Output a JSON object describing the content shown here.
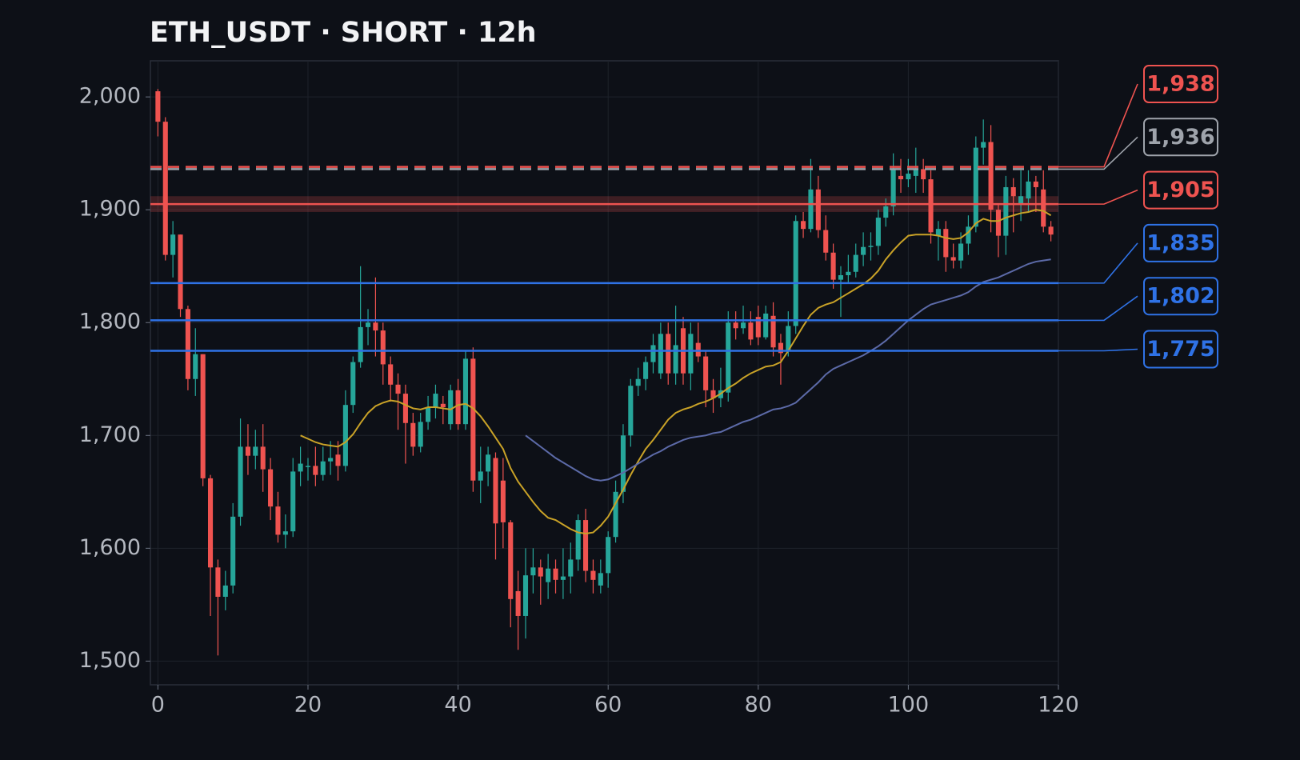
{
  "chart_data": {
    "type": "candlestick",
    "title": "ETH_USDT · SHORT · 12h",
    "xlim": [
      -1,
      120
    ],
    "ylim": [
      1479,
      2032
    ],
    "xticks": [
      0,
      20,
      40,
      60,
      80,
      100,
      120
    ],
    "yticks": [
      {
        "value": 1500,
        "label": "1,500"
      },
      {
        "value": 1600,
        "label": "1,600"
      },
      {
        "value": 1700,
        "label": "1,700"
      },
      {
        "value": 1800,
        "label": "1,800"
      },
      {
        "value": 1900,
        "label": "1,900"
      },
      {
        "value": 2000,
        "label": "2,000"
      }
    ],
    "grid": true,
    "up_color": "#26a69a",
    "down_color": "#ef5350",
    "x": [
      0,
      1,
      2,
      3,
      4,
      5,
      6,
      7,
      8,
      9,
      10,
      11,
      12,
      13,
      14,
      15,
      16,
      17,
      18,
      19,
      20,
      21,
      22,
      23,
      24,
      25,
      26,
      27,
      28,
      29,
      30,
      31,
      32,
      33,
      34,
      35,
      36,
      37,
      38,
      39,
      40,
      41,
      42,
      43,
      44,
      45,
      46,
      47,
      48,
      49,
      50,
      51,
      52,
      53,
      54,
      55,
      56,
      57,
      58,
      59,
      60,
      61,
      62,
      63,
      64,
      65,
      66,
      67,
      68,
      69,
      70,
      71,
      72,
      73,
      74,
      75,
      76,
      77,
      78,
      79,
      80,
      81,
      82,
      83,
      84,
      85,
      86,
      87,
      88,
      89,
      90,
      91,
      92,
      93,
      94,
      95,
      96,
      97,
      98,
      99,
      100,
      101,
      102,
      103,
      104,
      105,
      106,
      107,
      108,
      109,
      110,
      111,
      112,
      113,
      114,
      115,
      116,
      117,
      118,
      119
    ],
    "open": [
      2005,
      1978,
      1860,
      1878,
      1812,
      1750,
      1772,
      1662,
      1583,
      1557,
      1567,
      1628,
      1690,
      1682,
      1690,
      1670,
      1637,
      1612,
      1615,
      1668,
      1672,
      1673,
      1665,
      1677,
      1683,
      1673,
      1727,
      1765,
      1796,
      1800,
      1793,
      1763,
      1745,
      1737,
      1711,
      1690,
      1712,
      1725,
      1728,
      1710,
      1740,
      1710,
      1768,
      1660,
      1668,
      1680,
      1660,
      1623,
      1562,
      1540,
      1576,
      1583,
      1570,
      1582,
      1572,
      1575,
      1590,
      1625,
      1580,
      1567,
      1578,
      1610,
      1650,
      1700,
      1744,
      1750,
      1765,
      1755,
      1790,
      1755,
      1795,
      1755,
      1782,
      1770,
      1740,
      1733,
      1738,
      1800,
      1795,
      1800,
      1805,
      1787,
      1806,
      1782,
      1775,
      1797,
      1890,
      1883,
      1918,
      1882,
      1862,
      1838,
      1842,
      1845,
      1860,
      1867,
      1868,
      1893,
      1903,
      1930,
      1927,
      1930,
      1936,
      1927,
      1877,
      1883,
      1858,
      1855,
      1870,
      1885,
      1955,
      1960,
      1900,
      1877,
      1920,
      1905,
      1910,
      1925,
      1918,
      1885
    ],
    "high": [
      2007,
      1982,
      1890,
      1878,
      1815,
      1795,
      1772,
      1665,
      1590,
      1580,
      1640,
      1715,
      1710,
      1705,
      1710,
      1680,
      1650,
      1630,
      1680,
      1690,
      1680,
      1690,
      1690,
      1695,
      1695,
      1740,
      1770,
      1850,
      1812,
      1840,
      1800,
      1770,
      1755,
      1745,
      1720,
      1720,
      1735,
      1745,
      1735,
      1745,
      1750,
      1775,
      1778,
      1690,
      1690,
      1685,
      1680,
      1625,
      1580,
      1600,
      1600,
      1590,
      1595,
      1590,
      1600,
      1605,
      1630,
      1635,
      1590,
      1590,
      1615,
      1660,
      1710,
      1750,
      1760,
      1770,
      1790,
      1800,
      1800,
      1815,
      1805,
      1800,
      1800,
      1775,
      1750,
      1760,
      1810,
      1810,
      1815,
      1810,
      1815,
      1815,
      1818,
      1790,
      1810,
      1895,
      1898,
      1945,
      1930,
      1895,
      1870,
      1850,
      1860,
      1870,
      1880,
      1880,
      1900,
      1910,
      1950,
      1945,
      1945,
      1955,
      1945,
      1935,
      1890,
      1890,
      1870,
      1880,
      1895,
      1965,
      1980,
      1975,
      1905,
      1930,
      1928,
      1935,
      1935,
      1930,
      1935,
      1890
    ],
    "low": [
      1965,
      1855,
      1840,
      1805,
      1740,
      1735,
      1655,
      1540,
      1505,
      1545,
      1560,
      1620,
      1665,
      1670,
      1650,
      1625,
      1605,
      1600,
      1610,
      1655,
      1660,
      1655,
      1660,
      1665,
      1660,
      1668,
      1720,
      1760,
      1780,
      1770,
      1745,
      1730,
      1705,
      1675,
      1682,
      1685,
      1705,
      1715,
      1710,
      1705,
      1705,
      1705,
      1650,
      1640,
      1655,
      1590,
      1600,
      1530,
      1510,
      1520,
      1560,
      1550,
      1555,
      1560,
      1555,
      1560,
      1580,
      1570,
      1560,
      1560,
      1565,
      1605,
      1640,
      1690,
      1735,
      1740,
      1755,
      1750,
      1745,
      1745,
      1745,
      1740,
      1765,
      1725,
      1720,
      1725,
      1730,
      1785,
      1790,
      1780,
      1780,
      1785,
      1770,
      1745,
      1770,
      1790,
      1875,
      1880,
      1875,
      1855,
      1830,
      1805,
      1835,
      1840,
      1850,
      1855,
      1860,
      1885,
      1895,
      1915,
      1920,
      1915,
      1915,
      1870,
      1855,
      1845,
      1848,
      1848,
      1860,
      1880,
      1940,
      1880,
      1858,
      1860,
      1880,
      1890,
      1898,
      1898,
      1880,
      1872
    ],
    "close": [
      1978,
      1860,
      1878,
      1812,
      1750,
      1772,
      1662,
      1583,
      1557,
      1567,
      1628,
      1690,
      1682,
      1690,
      1670,
      1637,
      1612,
      1615,
      1668,
      1675,
      1673,
      1665,
      1677,
      1680,
      1673,
      1727,
      1765,
      1796,
      1800,
      1793,
      1763,
      1745,
      1737,
      1711,
      1690,
      1712,
      1725,
      1737,
      1725,
      1740,
      1710,
      1768,
      1660,
      1668,
      1683,
      1622,
      1623,
      1555,
      1540,
      1576,
      1583,
      1575,
      1582,
      1572,
      1575,
      1590,
      1625,
      1580,
      1572,
      1578,
      1610,
      1650,
      1700,
      1744,
      1750,
      1765,
      1780,
      1790,
      1755,
      1780,
      1755,
      1790,
      1770,
      1740,
      1733,
      1740,
      1800,
      1795,
      1800,
      1785,
      1787,
      1808,
      1778,
      1773,
      1797,
      1890,
      1883,
      1918,
      1882,
      1862,
      1838,
      1842,
      1845,
      1860,
      1867,
      1868,
      1893,
      1903,
      1936,
      1927,
      1932,
      1936,
      1927,
      1880,
      1883,
      1858,
      1855,
      1870,
      1885,
      1955,
      1960,
      1900,
      1877,
      1920,
      1912,
      1912,
      1925,
      1920,
      1885,
      1878
    ],
    "lines": [
      {
        "color": "#c9a227",
        "values": [
          null,
          null,
          null,
          null,
          null,
          null,
          null,
          null,
          null,
          null,
          null,
          null,
          null,
          null,
          null,
          null,
          null,
          null,
          null,
          1700,
          1697,
          1694,
          1692,
          1691,
          1690,
          1694,
          1701,
          1711,
          1720,
          1726,
          1729,
          1731,
          1730,
          1727,
          1724,
          1723,
          1725,
          1725,
          1724,
          1723,
          1727,
          1728,
          1724,
          1717,
          1708,
          1698,
          1688,
          1671,
          1659,
          1650,
          1641,
          1633,
          1627,
          1625,
          1621,
          1617,
          1614,
          1613,
          1614,
          1620,
          1628,
          1640,
          1652,
          1665,
          1677,
          1688,
          1696,
          1705,
          1714,
          1720,
          1723,
          1725,
          1728,
          1730,
          1733,
          1737,
          1742,
          1746,
          1751,
          1755,
          1758,
          1761,
          1762,
          1765,
          1775,
          1786,
          1797,
          1807,
          1813,
          1816,
          1818,
          1822,
          1826,
          1830,
          1834,
          1839,
          1846,
          1856,
          1864,
          1871,
          1877,
          1878,
          1878,
          1878,
          1877,
          1875,
          1874,
          1875,
          1880,
          1888,
          1892,
          1890,
          1890,
          1893,
          1895,
          1897,
          1898,
          1900,
          1899,
          1895
        ]
      },
      {
        "color": "#5c6aa8",
        "values": [
          null,
          null,
          null,
          null,
          null,
          null,
          null,
          null,
          null,
          null,
          null,
          null,
          null,
          null,
          null,
          null,
          null,
          null,
          null,
          null,
          null,
          null,
          null,
          null,
          null,
          null,
          null,
          null,
          null,
          null,
          null,
          null,
          null,
          null,
          null,
          null,
          null,
          null,
          null,
          null,
          null,
          null,
          null,
          null,
          null,
          null,
          null,
          null,
          null,
          1700,
          1695,
          1690,
          1685,
          1680,
          1676,
          1672,
          1668,
          1664,
          1661,
          1660,
          1661,
          1664,
          1667,
          1671,
          1675,
          1679,
          1683,
          1686,
          1690,
          1693,
          1696,
          1698,
          1699,
          1700,
          1702,
          1703,
          1706,
          1709,
          1712,
          1714,
          1717,
          1720,
          1723,
          1724,
          1726,
          1729,
          1735,
          1741,
          1747,
          1754,
          1759,
          1762,
          1765,
          1768,
          1771,
          1775,
          1779,
          1784,
          1790,
          1796,
          1802,
          1807,
          1812,
          1816,
          1818,
          1820,
          1822,
          1824,
          1827,
          1832,
          1836,
          1838,
          1840,
          1843,
          1846,
          1849,
          1852,
          1854,
          1855,
          1856
        ]
      }
    ],
    "levels": [
      {
        "value": 1938,
        "label": "1,938",
        "color": "#ef5350",
        "dashed": true
      },
      {
        "value": 1936,
        "label": "1,936",
        "color": "#9ea3ab",
        "dashed": true
      },
      {
        "value": 1905,
        "label": "1,905",
        "color": "#ef5350",
        "dashed": false,
        "band": [
          1898,
          1912
        ]
      },
      {
        "value": 1835,
        "label": "1,835",
        "color": "#2f72e6",
        "dashed": false
      },
      {
        "value": 1802,
        "label": "1,802",
        "color": "#2f72e6",
        "dashed": false
      },
      {
        "value": 1775,
        "label": "1,775",
        "color": "#2f72e6",
        "dashed": false
      }
    ]
  }
}
